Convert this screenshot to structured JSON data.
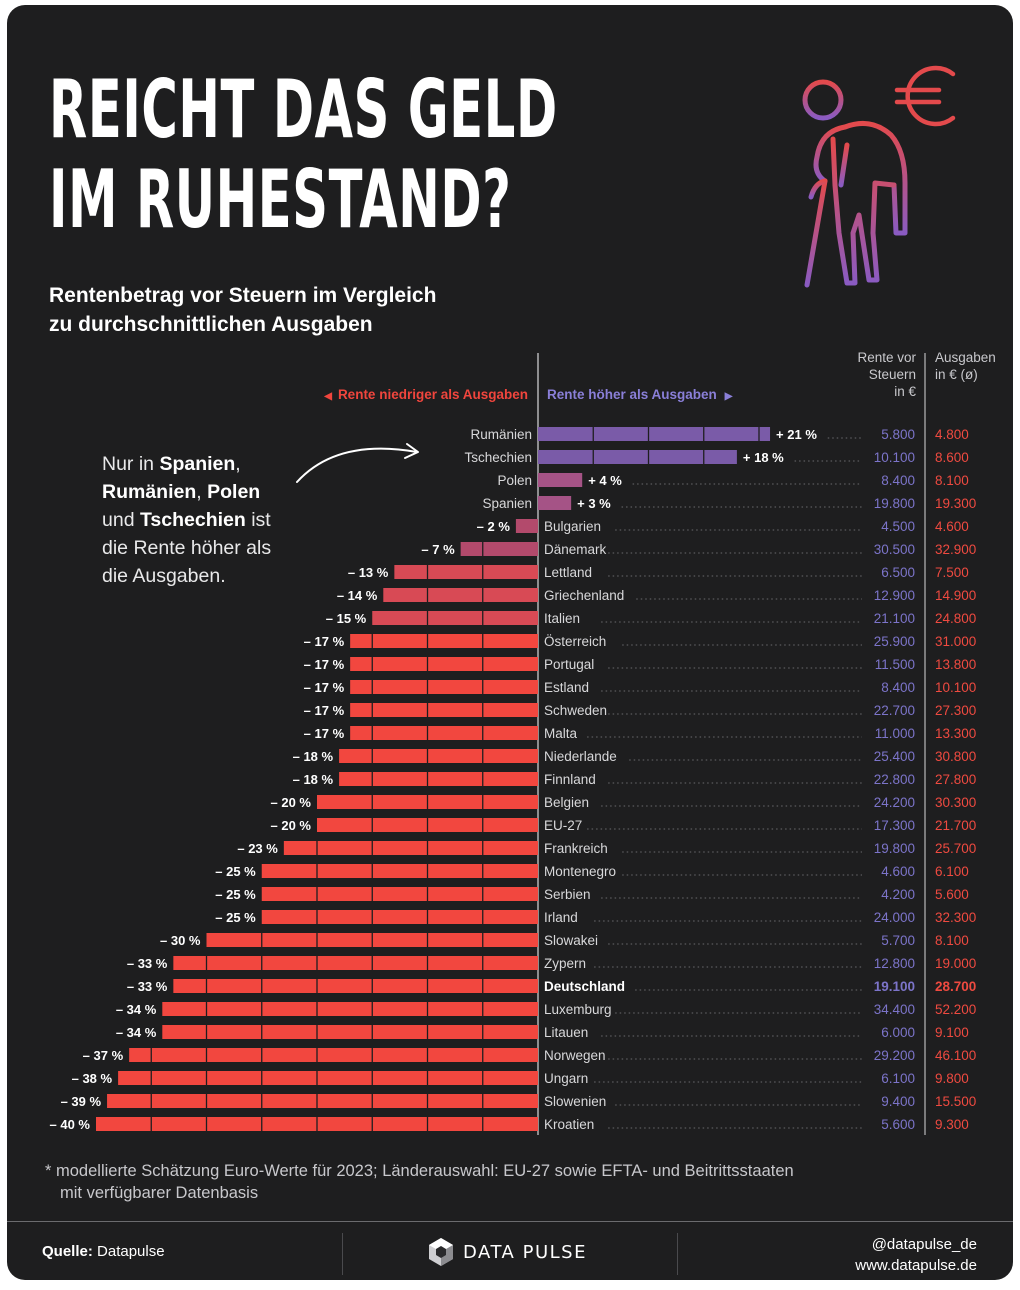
{
  "title": {
    "line1": "REICHT DAS GELD",
    "line2": "IM RUHESTAND?",
    "subtitle_line1": "Rentenbetrag vor Steuern im Vergleich",
    "subtitle_line2": "zu durchschnittlichen Ausgaben"
  },
  "icons": {
    "header": "elderly-person-with-cane-icon",
    "currency": "euro-icon",
    "brand": "datapulse-logo-icon",
    "legend_left": "triangle-left-icon",
    "legend_right": "triangle-right-icon"
  },
  "legend": {
    "left": "Rente niedriger als Ausgaben",
    "right": "Rente höher als Ausgaben"
  },
  "column_headers": {
    "pension_line1": "Rente vor",
    "pension_line2": "Steuern",
    "pension_line3": "in €",
    "expenses_line1": "Ausgaben",
    "expenses_line2": "in € (ø)"
  },
  "annotation": {
    "p1": "Nur in ",
    "b1": "Spanien",
    "p2": ",",
    "b2": "Rumänien",
    "p3": ", ",
    "b3": "Polen",
    "p4": "und ",
    "b4": "Tschechien",
    "p5": " ist",
    "p6": "die Rente höher als",
    "p7": "die Ausgaben."
  },
  "colors": {
    "background": "#1e1e1f",
    "negative_strong": "#f2473f",
    "negative_medium": "#d84a55",
    "negative_light": "#b34a6c",
    "positive_small": "#a55386",
    "positive_large": "#7a5ba8",
    "pension_text": "#7c74c9",
    "expense_text": "#ef4a40"
  },
  "chart_data": {
    "type": "bar",
    "title": "Rentenbetrag vor Steuern im Vergleich zu durchschnittlichen Ausgaben",
    "unit": "%",
    "xlim": [
      -40,
      21
    ],
    "highlight": "Deutschland",
    "rows": [
      {
        "country": "Rumänien",
        "diff": 21,
        "label": "+ 21 %",
        "pension": "5.800",
        "expenses": "4.800"
      },
      {
        "country": "Tschechien",
        "diff": 18,
        "label": "+ 18 %",
        "pension": "10.100",
        "expenses": "8.600"
      },
      {
        "country": "Polen",
        "diff": 4,
        "label": "+ 4 %",
        "pension": "8.400",
        "expenses": "8.100"
      },
      {
        "country": "Spanien",
        "diff": 3,
        "label": "+ 3 %",
        "pension": "19.800",
        "expenses": "19.300"
      },
      {
        "country": "Bulgarien",
        "diff": -2,
        "label": "– 2 %",
        "pension": "4.500",
        "expenses": "4.600"
      },
      {
        "country": "Dänemark",
        "diff": -7,
        "label": "– 7 %",
        "pension": "30.500",
        "expenses": "32.900"
      },
      {
        "country": "Lettland",
        "diff": -13,
        "label": "– 13 %",
        "pension": "6.500",
        "expenses": "7.500"
      },
      {
        "country": "Griechenland",
        "diff": -14,
        "label": "– 14 %",
        "pension": "12.900",
        "expenses": "14.900"
      },
      {
        "country": "Italien",
        "diff": -15,
        "label": "– 15 %",
        "pension": "21.100",
        "expenses": "24.800"
      },
      {
        "country": "Österreich",
        "diff": -17,
        "label": "– 17 %",
        "pension": "25.900",
        "expenses": "31.000"
      },
      {
        "country": "Portugal",
        "diff": -17,
        "label": "– 17 %",
        "pension": "11.500",
        "expenses": "13.800"
      },
      {
        "country": "Estland",
        "diff": -17,
        "label": "– 17 %",
        "pension": "8.400",
        "expenses": "10.100"
      },
      {
        "country": "Schweden",
        "diff": -17,
        "label": "– 17 %",
        "pension": "22.700",
        "expenses": "27.300"
      },
      {
        "country": "Malta",
        "diff": -17,
        "label": "– 17 %",
        "pension": "11.000",
        "expenses": "13.300"
      },
      {
        "country": "Niederlande",
        "diff": -18,
        "label": "– 18 %",
        "pension": "25.400",
        "expenses": "30.800"
      },
      {
        "country": "Finnland",
        "diff": -18,
        "label": "– 18 %",
        "pension": "22.800",
        "expenses": "27.800"
      },
      {
        "country": "Belgien",
        "diff": -20,
        "label": "– 20 %",
        "pension": "24.200",
        "expenses": "30.300"
      },
      {
        "country": "EU-27",
        "diff": -20,
        "label": "– 20 %",
        "pension": "17.300",
        "expenses": "21.700"
      },
      {
        "country": "Frankreich",
        "diff": -23,
        "label": "– 23 %",
        "pension": "19.800",
        "expenses": "25.700"
      },
      {
        "country": "Montenegro",
        "diff": -25,
        "label": "– 25 %",
        "pension": "4.600",
        "expenses": "6.100"
      },
      {
        "country": "Serbien",
        "diff": -25,
        "label": "– 25 %",
        "pension": "4.200",
        "expenses": "5.600"
      },
      {
        "country": "Irland",
        "diff": -25,
        "label": "– 25 %",
        "pension": "24.000",
        "expenses": "32.300"
      },
      {
        "country": "Slowakei",
        "diff": -30,
        "label": "– 30 %",
        "pension": "5.700",
        "expenses": "8.100"
      },
      {
        "country": "Zypern",
        "diff": -33,
        "label": "– 33 %",
        "pension": "12.800",
        "expenses": "19.000"
      },
      {
        "country": "Deutschland",
        "diff": -33,
        "label": "– 33 %",
        "pension": "19.100",
        "expenses": "28.700"
      },
      {
        "country": "Luxemburg",
        "diff": -34,
        "label": "– 34 %",
        "pension": "34.400",
        "expenses": "52.200"
      },
      {
        "country": "Litauen",
        "diff": -34,
        "label": "– 34 %",
        "pension": "6.000",
        "expenses": "9.100"
      },
      {
        "country": "Norwegen",
        "diff": -37,
        "label": "– 37 %",
        "pension": "29.200",
        "expenses": "46.100"
      },
      {
        "country": "Ungarn",
        "diff": -38,
        "label": "– 38 %",
        "pension": "6.100",
        "expenses": "9.800"
      },
      {
        "country": "Slowenien",
        "diff": -39,
        "label": "– 39 %",
        "pension": "9.400",
        "expenses": "15.500"
      },
      {
        "country": "Kroatien",
        "diff": -40,
        "label": "– 40 %",
        "pension": "5.600",
        "expenses": "9.300"
      }
    ]
  },
  "footnote": {
    "line1": "* modellierte Schätzung Euro-Werte für 2023; Länderauswahl: EU-27 sowie EFTA- und Beitrittsstaaten",
    "line2": "mit verfügbarer Datenbasis"
  },
  "footer": {
    "source_label": "Quelle:",
    "source_value": "Datapulse",
    "brand": "DATA PULSE",
    "social_handle": "@datapulse_de",
    "website": "www.datapulse.de"
  }
}
